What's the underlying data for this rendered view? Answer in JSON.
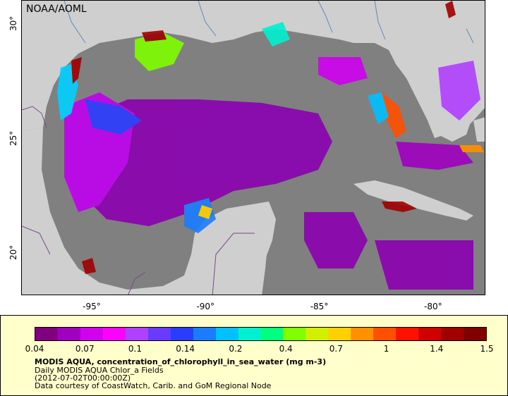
{
  "credit": "NOAA/AOML",
  "y_ticks": [
    {
      "label": "30°",
      "lat": 30
    },
    {
      "label": "25°",
      "lat": 25
    },
    {
      "label": "20°",
      "lat": 20
    }
  ],
  "x_ticks": [
    {
      "label": "-95°",
      "lon": -95
    },
    {
      "label": "-90°",
      "lon": -90
    },
    {
      "label": "-85°",
      "lon": -85
    },
    {
      "label": "-80°",
      "lon": -80
    }
  ],
  "colorbar": {
    "labels": [
      "0.04",
      "0.07",
      "0.1",
      "0.14",
      "0.2",
      "0.4",
      "0.7",
      "1",
      "1.4",
      "1.5"
    ],
    "colors": [
      "#800080",
      "#a000c0",
      "#d000f0",
      "#ff00ff",
      "#b040ff",
      "#6a3bff",
      "#2a3cff",
      "#1b7cff",
      "#00c0ff",
      "#00f0d0",
      "#00ff7f",
      "#7fff00",
      "#d0f000",
      "#ffd000",
      "#ff9000",
      "#ff5000",
      "#ff1000",
      "#d00000",
      "#a00000",
      "#800000"
    ]
  },
  "legend": {
    "title": "MODIS AQUA, concentration_of_chlorophyll_in_sea_water (mg m-3)",
    "line2": "Daily MODIS AQUA Chlor_a Fields",
    "line3": "(2012-07-02T00:00:00Z)",
    "line4": "Data courtesy of CoastWatch, Carib. and GoM Regional Node"
  }
}
